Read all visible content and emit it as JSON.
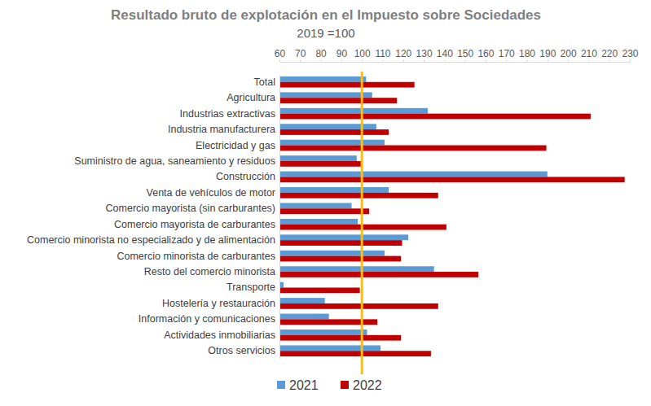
{
  "chart_data": {
    "type": "bar",
    "orientation": "horizontal",
    "title": "Resultado bruto de explotación en el Impuesto sobre Sociedades",
    "subtitle": "2019 =100",
    "categories": [
      "Total",
      "Agricultura",
      "Industrias extractivas",
      "Industria manufacturera",
      "Electricidad y gas",
      "Suministro de agua, saneamiento y residuos",
      "Construcción",
      "Venta de vehículos de motor",
      "Comercio mayorista (sin carburantes)",
      "Comercio mayorista de carburantes",
      "Comercio minorista no especializado y de alimentación",
      "Comercio minorista de carburantes",
      "Resto del comercio minorista",
      "Transporte",
      "Hostelería y restauración",
      "Información y comunicaciones",
      "Actividades inmobiliarias",
      "Otros servicios"
    ],
    "series": [
      {
        "name": "2021",
        "color": "#5b9bd5",
        "values": [
          102,
          105,
          132,
          107,
          111,
          97.5,
          190,
          113,
          95,
          98,
          122.5,
          111,
          135,
          62,
          82,
          84,
          102.5,
          109
        ]
      },
      {
        "name": "2022",
        "color": "#c00000",
        "values": [
          125.5,
          117,
          211,
          113,
          189.5,
          99.5,
          227.5,
          137,
          103.5,
          141,
          119.5,
          119,
          156.5,
          99,
          137,
          107.5,
          119,
          133.5
        ]
      }
    ],
    "xlim": [
      60,
      230
    ],
    "xticks": [
      60,
      70,
      80,
      90,
      100,
      110,
      120,
      130,
      140,
      150,
      160,
      170,
      180,
      190,
      200,
      210,
      220,
      230
    ],
    "reference_line": 100,
    "grid": false,
    "legend": "bottom"
  }
}
